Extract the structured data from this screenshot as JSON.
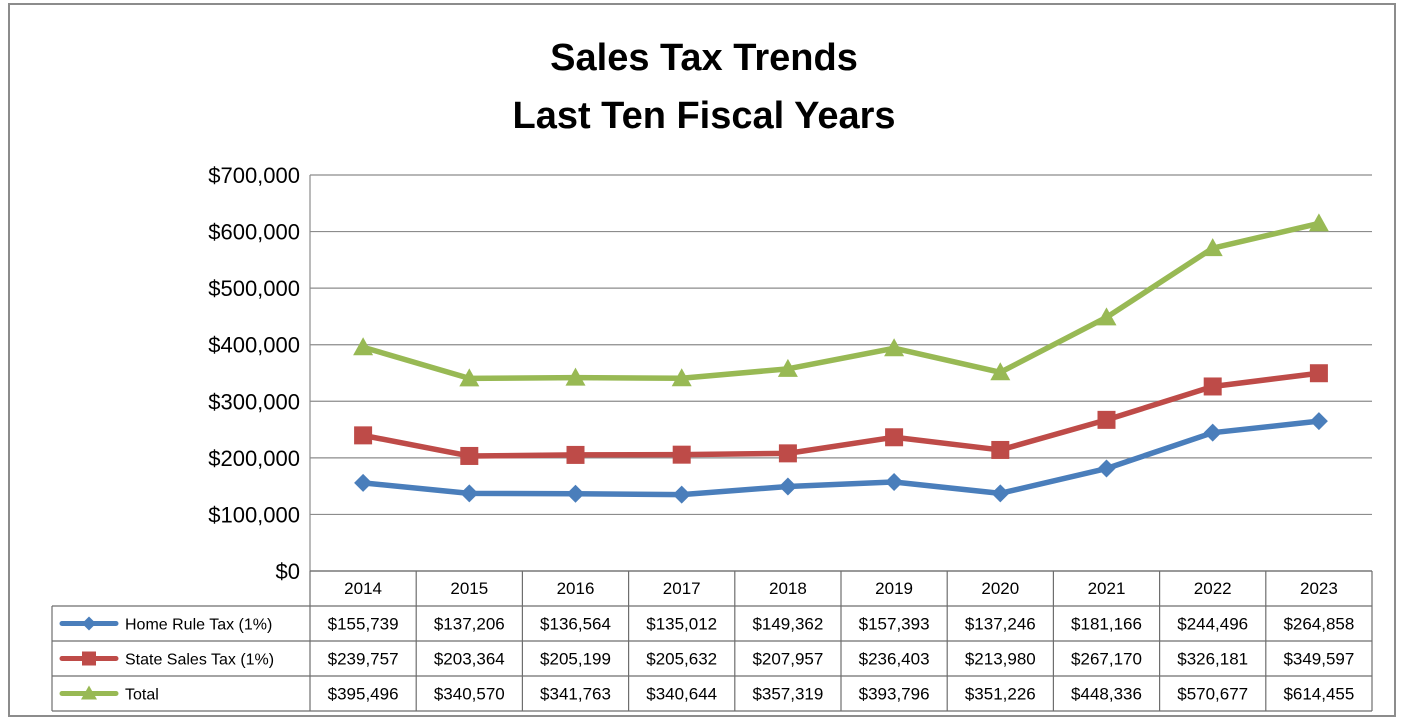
{
  "chart_data": {
    "type": "line",
    "title": [
      "Sales Tax Trends",
      "Last Ten Fiscal Years"
    ],
    "categories": [
      "2014",
      "2015",
      "2016",
      "2017",
      "2018",
      "2019",
      "2020",
      "2021",
      "2022",
      "2023"
    ],
    "ylim": [
      0,
      700000
    ],
    "yticks": [
      0,
      100000,
      200000,
      300000,
      400000,
      500000,
      600000,
      700000
    ],
    "ytick_labels": [
      "$0",
      "$100,000",
      "$200,000",
      "$300,000",
      "$400,000",
      "$500,000",
      "$600,000",
      "$700,000"
    ],
    "grid": true,
    "legend": "data-table",
    "series": [
      {
        "name": "Home Rule Tax (1%)",
        "color": "#4a7ebb",
        "marker": "diamond",
        "values": [
          155739,
          137206,
          136564,
          135012,
          149362,
          157393,
          137246,
          181166,
          244496,
          264858
        ],
        "labels": [
          "$155,739",
          "$137,206",
          "$136,564",
          "$135,012",
          "$149,362",
          "$157,393",
          "$137,246",
          "$181,166",
          "$244,496",
          "$264,858"
        ]
      },
      {
        "name": "State Sales Tax (1%)",
        "color": "#be4b48",
        "marker": "square",
        "values": [
          239757,
          203364,
          205199,
          205632,
          207957,
          236403,
          213980,
          267170,
          326181,
          349597
        ],
        "labels": [
          "$239,757",
          "$203,364",
          "$205,199",
          "$205,632",
          "$207,957",
          "$236,403",
          "$213,980",
          "$267,170",
          "$326,181",
          "$349,597"
        ]
      },
      {
        "name": "Total",
        "color": "#98b954",
        "marker": "triangle",
        "values": [
          395496,
          340570,
          341763,
          340644,
          357319,
          393796,
          351226,
          448336,
          570677,
          614455
        ],
        "labels": [
          "$395,496",
          "$340,570",
          "$341,763",
          "$340,644",
          "$357,319",
          "$393,796",
          "$351,226",
          "$448,336",
          "$570,677",
          "$614,455"
        ]
      }
    ]
  }
}
